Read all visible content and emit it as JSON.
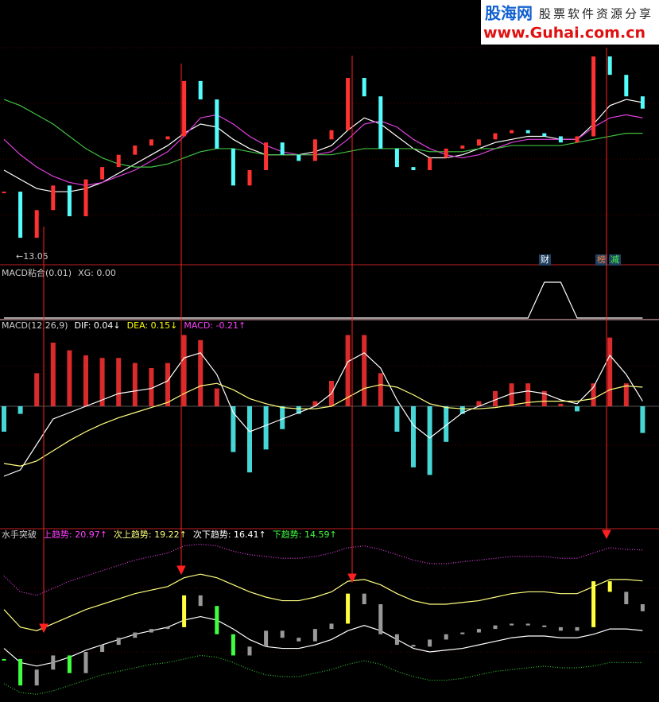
{
  "watermark": {
    "brand": "股海网",
    "slogan": "股票软件资源分享",
    "url": "www.Guhai.com.cn"
  },
  "chart_data": [
    {
      "type": "candlestick",
      "annotations": [
        "←13.05",
        "财",
        "榜",
        "减"
      ],
      "ylim": [
        12.5,
        20
      ],
      "close": [
        14.8,
        13.3,
        14.2,
        15.0,
        14.0,
        15.2,
        15.6,
        16.0,
        16.3,
        16.5,
        16.6,
        18.4,
        17.8,
        16.2,
        15.0,
        15.5,
        16.4,
        16.0,
        15.8,
        16.5,
        16.8,
        18.5,
        17.9,
        16.2,
        15.6,
        15.5,
        15.9,
        16.2,
        16.3,
        16.5,
        16.7,
        16.8,
        16.7,
        16.6,
        16.4,
        16.6,
        19.2,
        18.6,
        17.9,
        17.5
      ],
      "up_color": "#ff3232",
      "down_color": "#54fcfc",
      "series": [
        {
          "color": "#ffffff",
          "values": [
            15.5,
            15.2,
            14.9,
            14.8,
            14.8,
            14.9,
            15.1,
            15.4,
            15.7,
            16.0,
            16.3,
            16.7,
            17.0,
            16.9,
            16.5,
            16.2,
            16.0,
            16.0,
            16.0,
            16.1,
            16.3,
            16.8,
            17.2,
            17.0,
            16.6,
            16.2,
            15.9,
            15.9,
            16.0,
            16.2,
            16.4,
            16.5,
            16.6,
            16.6,
            16.5,
            16.5,
            17.0,
            17.6,
            17.8,
            17.7
          ]
        },
        {
          "color": "#e040e0",
          "values": [
            16.5,
            16.0,
            15.6,
            15.3,
            15.1,
            15.0,
            15.1,
            15.3,
            15.5,
            15.8,
            16.1,
            16.6,
            17.2,
            17.3,
            17.0,
            16.6,
            16.3,
            16.1,
            16.0,
            16.0,
            16.1,
            16.5,
            17.0,
            17.1,
            16.9,
            16.5,
            16.2,
            16.0,
            15.9,
            16.0,
            16.2,
            16.4,
            16.5,
            16.5,
            16.5,
            16.5,
            16.9,
            17.2,
            17.3,
            17.2
          ]
        },
        {
          "color": "#40c040",
          "values": [
            17.8,
            17.6,
            17.3,
            17.0,
            16.6,
            16.2,
            15.9,
            15.7,
            15.6,
            15.6,
            15.7,
            15.9,
            16.1,
            16.2,
            16.2,
            16.1,
            16.0,
            16.0,
            16.0,
            16.0,
            16.0,
            16.1,
            16.2,
            16.2,
            16.2,
            16.2,
            16.1,
            16.1,
            16.1,
            16.2,
            16.2,
            16.3,
            16.3,
            16.3,
            16.3,
            16.4,
            16.5,
            16.6,
            16.7,
            16.7
          ]
        }
      ]
    },
    {
      "type": "line",
      "title_parts": [
        "MACD粘合(0.01)",
        "XG: 0.00"
      ],
      "title_colors": [
        "#cccccc",
        "#cccccc"
      ],
      "ylim": [
        0,
        1
      ],
      "color": "#ffffff",
      "values": [
        0,
        0,
        0,
        0,
        0,
        0,
        0,
        0,
        0,
        0,
        0,
        0,
        0,
        0,
        0,
        0,
        0,
        0,
        0,
        0,
        0,
        0,
        0,
        0,
        0,
        0,
        0,
        0,
        0,
        0,
        0,
        0,
        0,
        1,
        1,
        0,
        0,
        0,
        0,
        0
      ]
    },
    {
      "type": "macd",
      "title_parts": [
        "MACD(12,26,9)",
        "DIF: 0.04↓",
        "DEA: 0.15↓",
        "MACD: -0.21↑"
      ],
      "title_colors": [
        "#cccccc",
        "#ffffff",
        "#ffff00",
        "#ff40ff"
      ],
      "ylim": [
        -0.6,
        0.6
      ],
      "up_color": "#ff3232",
      "down_color": "#54fcfc",
      "macd": [
        -0.2,
        -0.06,
        0.26,
        0.5,
        0.44,
        0.4,
        0.38,
        0.38,
        0.34,
        0.3,
        0.34,
        0.56,
        0.52,
        0.14,
        -0.36,
        -0.52,
        -0.34,
        -0.18,
        -0.06,
        0.04,
        0.2,
        0.56,
        0.56,
        0.26,
        -0.2,
        -0.48,
        -0.54,
        -0.28,
        -0.06,
        0.04,
        0.12,
        0.18,
        0.18,
        0.12,
        0.02,
        -0.04,
        0.18,
        0.54,
        0.18,
        -0.21
      ],
      "series": [
        {
          "color": "#ffffff",
          "values": [
            -0.55,
            -0.5,
            -0.3,
            -0.1,
            -0.05,
            0.0,
            0.05,
            0.1,
            0.12,
            0.14,
            0.2,
            0.38,
            0.42,
            0.25,
            -0.05,
            -0.2,
            -0.15,
            -0.1,
            -0.05,
            0.0,
            0.1,
            0.35,
            0.42,
            0.3,
            0.05,
            -0.15,
            -0.25,
            -0.15,
            -0.05,
            0.0,
            0.05,
            0.1,
            0.12,
            0.1,
            0.05,
            0.02,
            0.15,
            0.4,
            0.25,
            0.04
          ]
        },
        {
          "color": "#ffff80",
          "values": [
            -0.45,
            -0.47,
            -0.43,
            -0.35,
            -0.27,
            -0.2,
            -0.14,
            -0.09,
            -0.05,
            -0.01,
            0.03,
            0.1,
            0.16,
            0.18,
            0.13,
            0.06,
            0.02,
            -0.01,
            -0.02,
            -0.02,
            0.0,
            0.07,
            0.14,
            0.17,
            0.15,
            0.09,
            0.02,
            -0.01,
            -0.02,
            -0.02,
            -0.01,
            0.01,
            0.03,
            0.04,
            0.04,
            0.04,
            0.06,
            0.13,
            0.16,
            0.15
          ]
        }
      ]
    },
    {
      "type": "bands",
      "title_parts": [
        "水手突破",
        "上趋势: 20.97↑",
        "次上趋势: 19.22↑",
        "次下趋势: 16.41↑",
        "下趋势: 14.59↑"
      ],
      "title_colors": [
        "#cccccc",
        "#ff40ff",
        "#ffff80",
        "#ffffff",
        "#40ff40"
      ],
      "ylim": [
        12.5,
        21.5
      ],
      "close": [
        14.8,
        13.3,
        14.2,
        15.0,
        14.0,
        15.2,
        15.6,
        16.0,
        16.3,
        16.5,
        16.6,
        18.4,
        17.8,
        16.2,
        15.0,
        15.5,
        16.4,
        16.0,
        15.8,
        16.5,
        16.8,
        18.5,
        17.9,
        16.2,
        15.6,
        15.5,
        15.9,
        16.2,
        16.3,
        16.5,
        16.7,
        16.8,
        16.7,
        16.6,
        16.4,
        16.6,
        19.2,
        18.6,
        17.9,
        17.5
      ],
      "candle_colors": [
        "#ffff40",
        "#999999",
        "#40ff40"
      ],
      "series": [
        {
          "color": "#e040e0",
          "dashed": true,
          "values": [
            19.5,
            18.6,
            18.4,
            18.8,
            19.2,
            19.5,
            19.8,
            20.1,
            20.4,
            20.6,
            20.8,
            21.2,
            21.3,
            21.2,
            20.9,
            20.7,
            20.6,
            20.5,
            20.5,
            20.6,
            20.8,
            21.1,
            21.2,
            21.0,
            20.7,
            20.4,
            20.2,
            20.2,
            20.3,
            20.4,
            20.5,
            20.6,
            20.6,
            20.6,
            20.5,
            20.5,
            20.8,
            21.1,
            21.0,
            20.97
          ]
        },
        {
          "color": "#ffff80",
          "dashed": false,
          "values": [
            17.6,
            16.6,
            16.4,
            16.8,
            17.2,
            17.6,
            17.9,
            18.2,
            18.5,
            18.7,
            18.9,
            19.4,
            19.6,
            19.4,
            19.0,
            18.6,
            18.3,
            18.1,
            18.1,
            18.3,
            18.6,
            19.2,
            19.3,
            19.0,
            18.5,
            18.1,
            17.9,
            17.9,
            18.0,
            18.1,
            18.3,
            18.5,
            18.6,
            18.6,
            18.5,
            18.5,
            18.9,
            19.3,
            19.3,
            19.22
          ]
        },
        {
          "color": "#ffffff",
          "dashed": false,
          "values": [
            15.4,
            14.6,
            14.4,
            14.6,
            14.9,
            15.3,
            15.6,
            15.9,
            16.2,
            16.4,
            16.6,
            17.0,
            17.2,
            17.0,
            16.5,
            15.9,
            15.5,
            15.4,
            15.4,
            15.6,
            15.9,
            16.4,
            16.7,
            16.4,
            15.9,
            15.4,
            15.2,
            15.3,
            15.4,
            15.6,
            15.8,
            16.0,
            16.1,
            16.1,
            16.0,
            16.0,
            16.2,
            16.5,
            16.5,
            16.41
          ]
        },
        {
          "color": "#30c030",
          "dashed": true,
          "values": [
            13.4,
            12.9,
            12.8,
            13.0,
            13.3,
            13.6,
            13.9,
            14.1,
            14.3,
            14.5,
            14.6,
            14.8,
            15.0,
            14.9,
            14.6,
            14.2,
            13.9,
            13.8,
            13.8,
            14.0,
            14.2,
            14.5,
            14.7,
            14.5,
            14.1,
            13.8,
            13.6,
            13.6,
            13.7,
            13.9,
            14.1,
            14.2,
            14.3,
            14.4,
            14.3,
            14.3,
            14.4,
            14.6,
            14.6,
            14.59
          ]
        }
      ]
    }
  ]
}
